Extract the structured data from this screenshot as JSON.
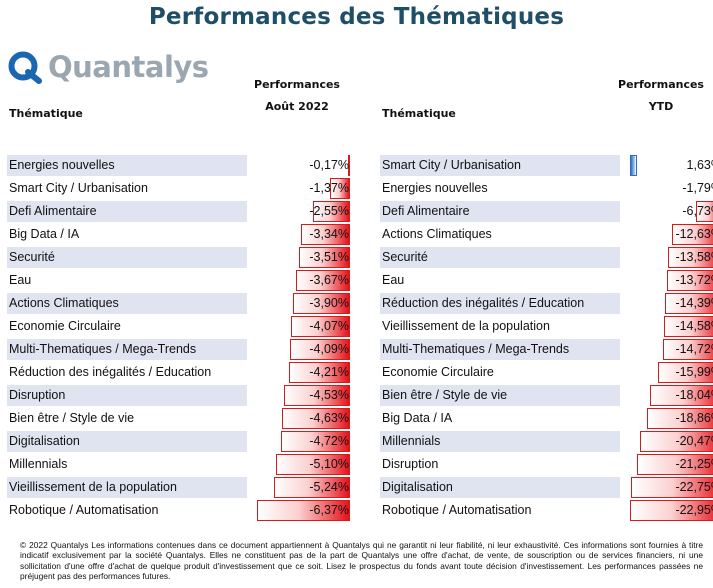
{
  "page_title": "Performances des Thématiques",
  "logo_text": "Quantalys",
  "left_table": {
    "col_theme": "Thématique",
    "col_perf_line1": "Performances",
    "col_perf_line2": "Août 2022"
  },
  "right_table": {
    "col_theme": "Thématique",
    "col_perf_line1": "Performances",
    "col_perf_line2": "YTD"
  },
  "chart_data": [
    {
      "type": "bar",
      "title": "Performances Août 2022",
      "categories": [
        "Energies nouvelles",
        "Smart City / Urbanisation",
        "Defi Alimentaire",
        "Big Data / IA",
        "Securité",
        "Eau",
        "Actions Climatiques",
        "Economie Circulaire",
        "Multi-Thematiques / Mega-Trends",
        "Réduction des inégalités / Education",
        "Disruption",
        "Bien être / Style de vie",
        "Digitalisation",
        "Millennials",
        "Vieillissement de la population",
        "Robotique / Automatisation"
      ],
      "values": [
        -0.17,
        -1.37,
        -2.55,
        -3.34,
        -3.51,
        -3.67,
        -3.9,
        -4.07,
        -4.09,
        -4.21,
        -4.53,
        -4.63,
        -4.72,
        -5.1,
        -5.24,
        -6.37
      ],
      "labels": [
        "-0,17%",
        "-1,37%",
        "-2,55%",
        "-3,34%",
        "-3,51%",
        "-3,67%",
        "-3,90%",
        "-4,07%",
        "-4,09%",
        "-4,21%",
        "-4,53%",
        "-4,63%",
        "-4,72%",
        "-5,10%",
        "-5,24%",
        "-6,37%"
      ]
    },
    {
      "type": "bar",
      "title": "Performances YTD",
      "categories": [
        "Smart City / Urbanisation",
        "Energies nouvelles",
        "Defi Alimentaire",
        "Actions Climatiques",
        "Securité",
        "Eau",
        "Réduction des inégalités / Education",
        "Vieillissement de la population",
        "Multi-Thematiques / Mega-Trends",
        "Economie Circulaire",
        "Bien être / Style de vie",
        "Big Data / IA",
        "Millennials",
        "Disruption",
        "Digitalisation",
        "Robotique / Automatisation"
      ],
      "values": [
        1.63,
        -1.79,
        -6.73,
        -12.63,
        -13.58,
        -13.72,
        -14.39,
        -14.58,
        -14.72,
        -15.99,
        -18.04,
        -18.86,
        -20.47,
        -21.25,
        -22.75,
        -22.95
      ],
      "labels": [
        "1,63%",
        "-1,79%",
        "-6,73%",
        "-12,63%",
        "-13,58%",
        "-13,72%",
        "-14,39%",
        "-14,58%",
        "-14,72%",
        "-15,99%",
        "-18,04%",
        "-18,86%",
        "-20,47%",
        "-21,25%",
        "-22,75%",
        "-22,95%"
      ]
    }
  ],
  "colors": {
    "title": "#1f4e67",
    "negative_bar": "#e5121a",
    "positive_bar": "#2d6fc2",
    "row_shade": "#dfe4f0"
  },
  "footer_text": "© 2022 Quantalys Les informations contenues dans ce document appartiennent à Quantalys qui ne garantit ni leur fiabilité, ni leur exhaustivité. Ces informations sont fournies à titre indicatif exclusivement par la société Quantalys. Elles ne constituent pas de la part de Quantalys une offre d'achat, de vente, de souscription ou de services financiers, ni une sollicitation d'une offre d'achat de quelque produit d'investissement que ce soit. Lisez le prospectus du fonds avant toute décision d'investissement. Les performances passées ne préjugent pas des performances futures."
}
